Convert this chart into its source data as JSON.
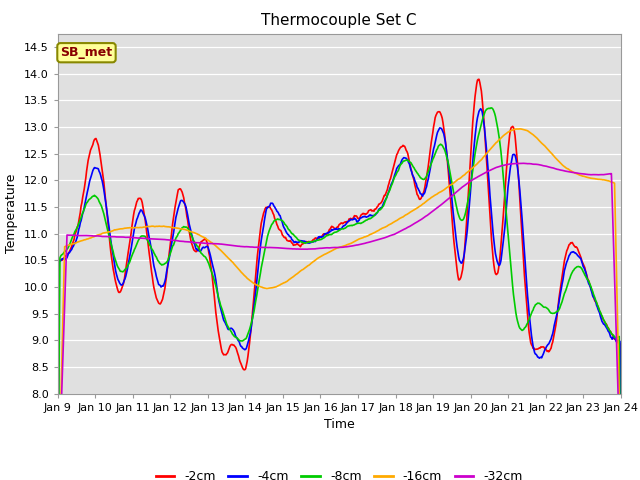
{
  "title": "Thermocouple Set C",
  "xlabel": "Time",
  "ylabel": "Temperature",
  "ylim": [
    8.0,
    14.75
  ],
  "yticks": [
    8.0,
    8.5,
    9.0,
    9.5,
    10.0,
    10.5,
    11.0,
    11.5,
    12.0,
    12.5,
    13.0,
    13.5,
    14.0,
    14.5
  ],
  "xtick_labels": [
    "Jan 9",
    "Jan 10",
    "Jan 11",
    "Jan 12",
    "Jan 13",
    "Jan 14",
    "Jan 15",
    "Jan 16",
    "Jan 17",
    "Jan 18",
    "Jan 19",
    "Jan 20",
    "Jan 21",
    "Jan 22",
    "Jan 23",
    "Jan 24"
  ],
  "series_colors": [
    "#ff0000",
    "#0000ff",
    "#00cc00",
    "#ffaa00",
    "#cc00cc"
  ],
  "series_labels": [
    "-2cm",
    "-4cm",
    "-8cm",
    "-16cm",
    "-32cm"
  ],
  "legend_label": "SB_met",
  "legend_bg": "#ffff99",
  "legend_border": "#888800",
  "plot_bg": "#e0e0e0",
  "fig_bg": "#ffffff",
  "title_fontsize": 11,
  "axis_fontsize": 9,
  "tick_fontsize": 8,
  "linewidth": 1.2
}
